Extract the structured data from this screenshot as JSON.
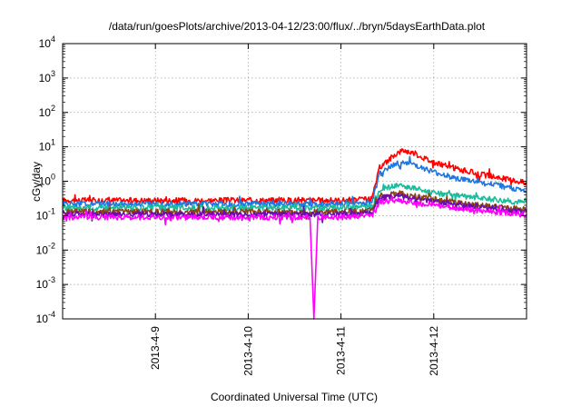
{
  "chart_data": {
    "type": "line",
    "title": "/data/run/goesPlots/archive/2013-04-12/23:00/flux/../bryn/5daysEarthData.plot",
    "xlabel": "Coordinated Universal Time (UTC)",
    "ylabel": "cGy/day",
    "yscale": "log",
    "ylim": [
      0.0001,
      10000
    ],
    "xlim": [
      "2013-04-08T00:00",
      "2013-04-13T00:00"
    ],
    "xticks": [
      {
        "t": "2013-04-09T00:00",
        "label": "2013-4-9"
      },
      {
        "t": "2013-04-10T00:00",
        "label": "2013-4-10"
      },
      {
        "t": "2013-04-11T00:00",
        "label": "2013-4-11"
      },
      {
        "t": "2013-04-12T00:00",
        "label": "2013-4-12"
      }
    ],
    "yticks": [
      {
        "v": 0.0001,
        "base": "10",
        "exp": "-4"
      },
      {
        "v": 0.001,
        "base": "10",
        "exp": "-3"
      },
      {
        "v": 0.01,
        "base": "10",
        "exp": "-2"
      },
      {
        "v": 0.1,
        "base": "10",
        "exp": "-1"
      },
      {
        "v": 1,
        "base": "10",
        "exp": "0"
      },
      {
        "v": 10,
        "base": "10",
        "exp": "1"
      },
      {
        "v": 100,
        "base": "10",
        "exp": "2"
      },
      {
        "v": 1000,
        "base": "10",
        "exp": "3"
      },
      {
        "v": 10000,
        "base": "10",
        "exp": "4"
      }
    ],
    "grid": true,
    "series": [
      {
        "color": "#ff0000",
        "points": [
          [
            "2013-04-08T00:00",
            0.28
          ],
          [
            "2013-04-09T00:00",
            0.28
          ],
          [
            "2013-04-10T00:00",
            0.28
          ],
          [
            "2013-04-11T00:00",
            0.28
          ],
          [
            "2013-04-11T08:00",
            0.3
          ],
          [
            "2013-04-11T10:00",
            2.5
          ],
          [
            "2013-04-11T14:00",
            6.0
          ],
          [
            "2013-04-11T16:00",
            8.0
          ],
          [
            "2013-04-11T19:00",
            6.5
          ],
          [
            "2013-04-12T00:00",
            3.5
          ],
          [
            "2013-04-12T06:00",
            2.3
          ],
          [
            "2013-04-12T12:00",
            1.6
          ],
          [
            "2013-04-12T18:00",
            1.2
          ],
          [
            "2013-04-13T00:00",
            0.9
          ]
        ]
      },
      {
        "color": "#1f77e0",
        "points": [
          [
            "2013-04-08T00:00",
            0.22
          ],
          [
            "2013-04-09T00:00",
            0.22
          ],
          [
            "2013-04-10T00:00",
            0.22
          ],
          [
            "2013-04-11T00:00",
            0.22
          ],
          [
            "2013-04-11T08:00",
            0.23
          ],
          [
            "2013-04-11T10:00",
            1.6
          ],
          [
            "2013-04-11T14:00",
            3.2
          ],
          [
            "2013-04-11T16:00",
            3.6
          ],
          [
            "2013-04-11T19:00",
            3.0
          ],
          [
            "2013-04-12T00:00",
            1.8
          ],
          [
            "2013-04-12T06:00",
            1.2
          ],
          [
            "2013-04-12T12:00",
            0.9
          ],
          [
            "2013-04-12T18:00",
            0.7
          ],
          [
            "2013-04-13T00:00",
            0.5
          ]
        ]
      },
      {
        "color": "#1abc9c",
        "points": [
          [
            "2013-04-08T00:00",
            0.17
          ],
          [
            "2013-04-09T00:00",
            0.17
          ],
          [
            "2013-04-10T00:00",
            0.17
          ],
          [
            "2013-04-11T00:00",
            0.17
          ],
          [
            "2013-04-11T08:00",
            0.18
          ],
          [
            "2013-04-11T10:00",
            0.55
          ],
          [
            "2013-04-11T14:00",
            0.75
          ],
          [
            "2013-04-11T19:00",
            0.65
          ],
          [
            "2013-04-12T00:00",
            0.45
          ],
          [
            "2013-04-12T12:00",
            0.32
          ],
          [
            "2013-04-13T00:00",
            0.24
          ]
        ]
      },
      {
        "color": "#8b4513",
        "points": [
          [
            "2013-04-08T00:00",
            0.13
          ],
          [
            "2013-04-09T00:00",
            0.13
          ],
          [
            "2013-04-10T00:00",
            0.13
          ],
          [
            "2013-04-11T00:00",
            0.13
          ],
          [
            "2013-04-11T08:00",
            0.14
          ],
          [
            "2013-04-11T10:00",
            0.38
          ],
          [
            "2013-04-11T15:00",
            0.45
          ],
          [
            "2013-04-12T00:00",
            0.3
          ],
          [
            "2013-04-12T12:00",
            0.2
          ],
          [
            "2013-04-13T00:00",
            0.15
          ]
        ]
      },
      {
        "color": "#6a0dad",
        "points": [
          [
            "2013-04-08T00:00",
            0.11
          ],
          [
            "2013-04-09T00:00",
            0.11
          ],
          [
            "2013-04-10T00:00",
            0.11
          ],
          [
            "2013-04-11T00:00",
            0.11
          ],
          [
            "2013-04-11T08:00",
            0.12
          ],
          [
            "2013-04-11T10:00",
            0.32
          ],
          [
            "2013-04-11T15:00",
            0.38
          ],
          [
            "2013-04-12T00:00",
            0.26
          ],
          [
            "2013-04-12T12:00",
            0.18
          ],
          [
            "2013-04-13T00:00",
            0.13
          ]
        ]
      },
      {
        "color": "#ff00ff",
        "points": [
          [
            "2013-04-08T00:00",
            0.09
          ],
          [
            "2013-04-09T00:00",
            0.09
          ],
          [
            "2013-04-10T00:00",
            0.09
          ],
          [
            "2013-04-10T16:00",
            0.09
          ],
          [
            "2013-04-10T17:00",
            0.0001
          ],
          [
            "2013-04-10T18:00",
            0.09
          ],
          [
            "2013-04-11T00:00",
            0.09
          ],
          [
            "2013-04-11T08:00",
            0.1
          ],
          [
            "2013-04-11T10:00",
            0.25
          ],
          [
            "2013-04-11T15:00",
            0.28
          ],
          [
            "2013-04-12T00:00",
            0.2
          ],
          [
            "2013-04-12T12:00",
            0.14
          ],
          [
            "2013-04-13T00:00",
            0.11
          ]
        ]
      }
    ]
  }
}
